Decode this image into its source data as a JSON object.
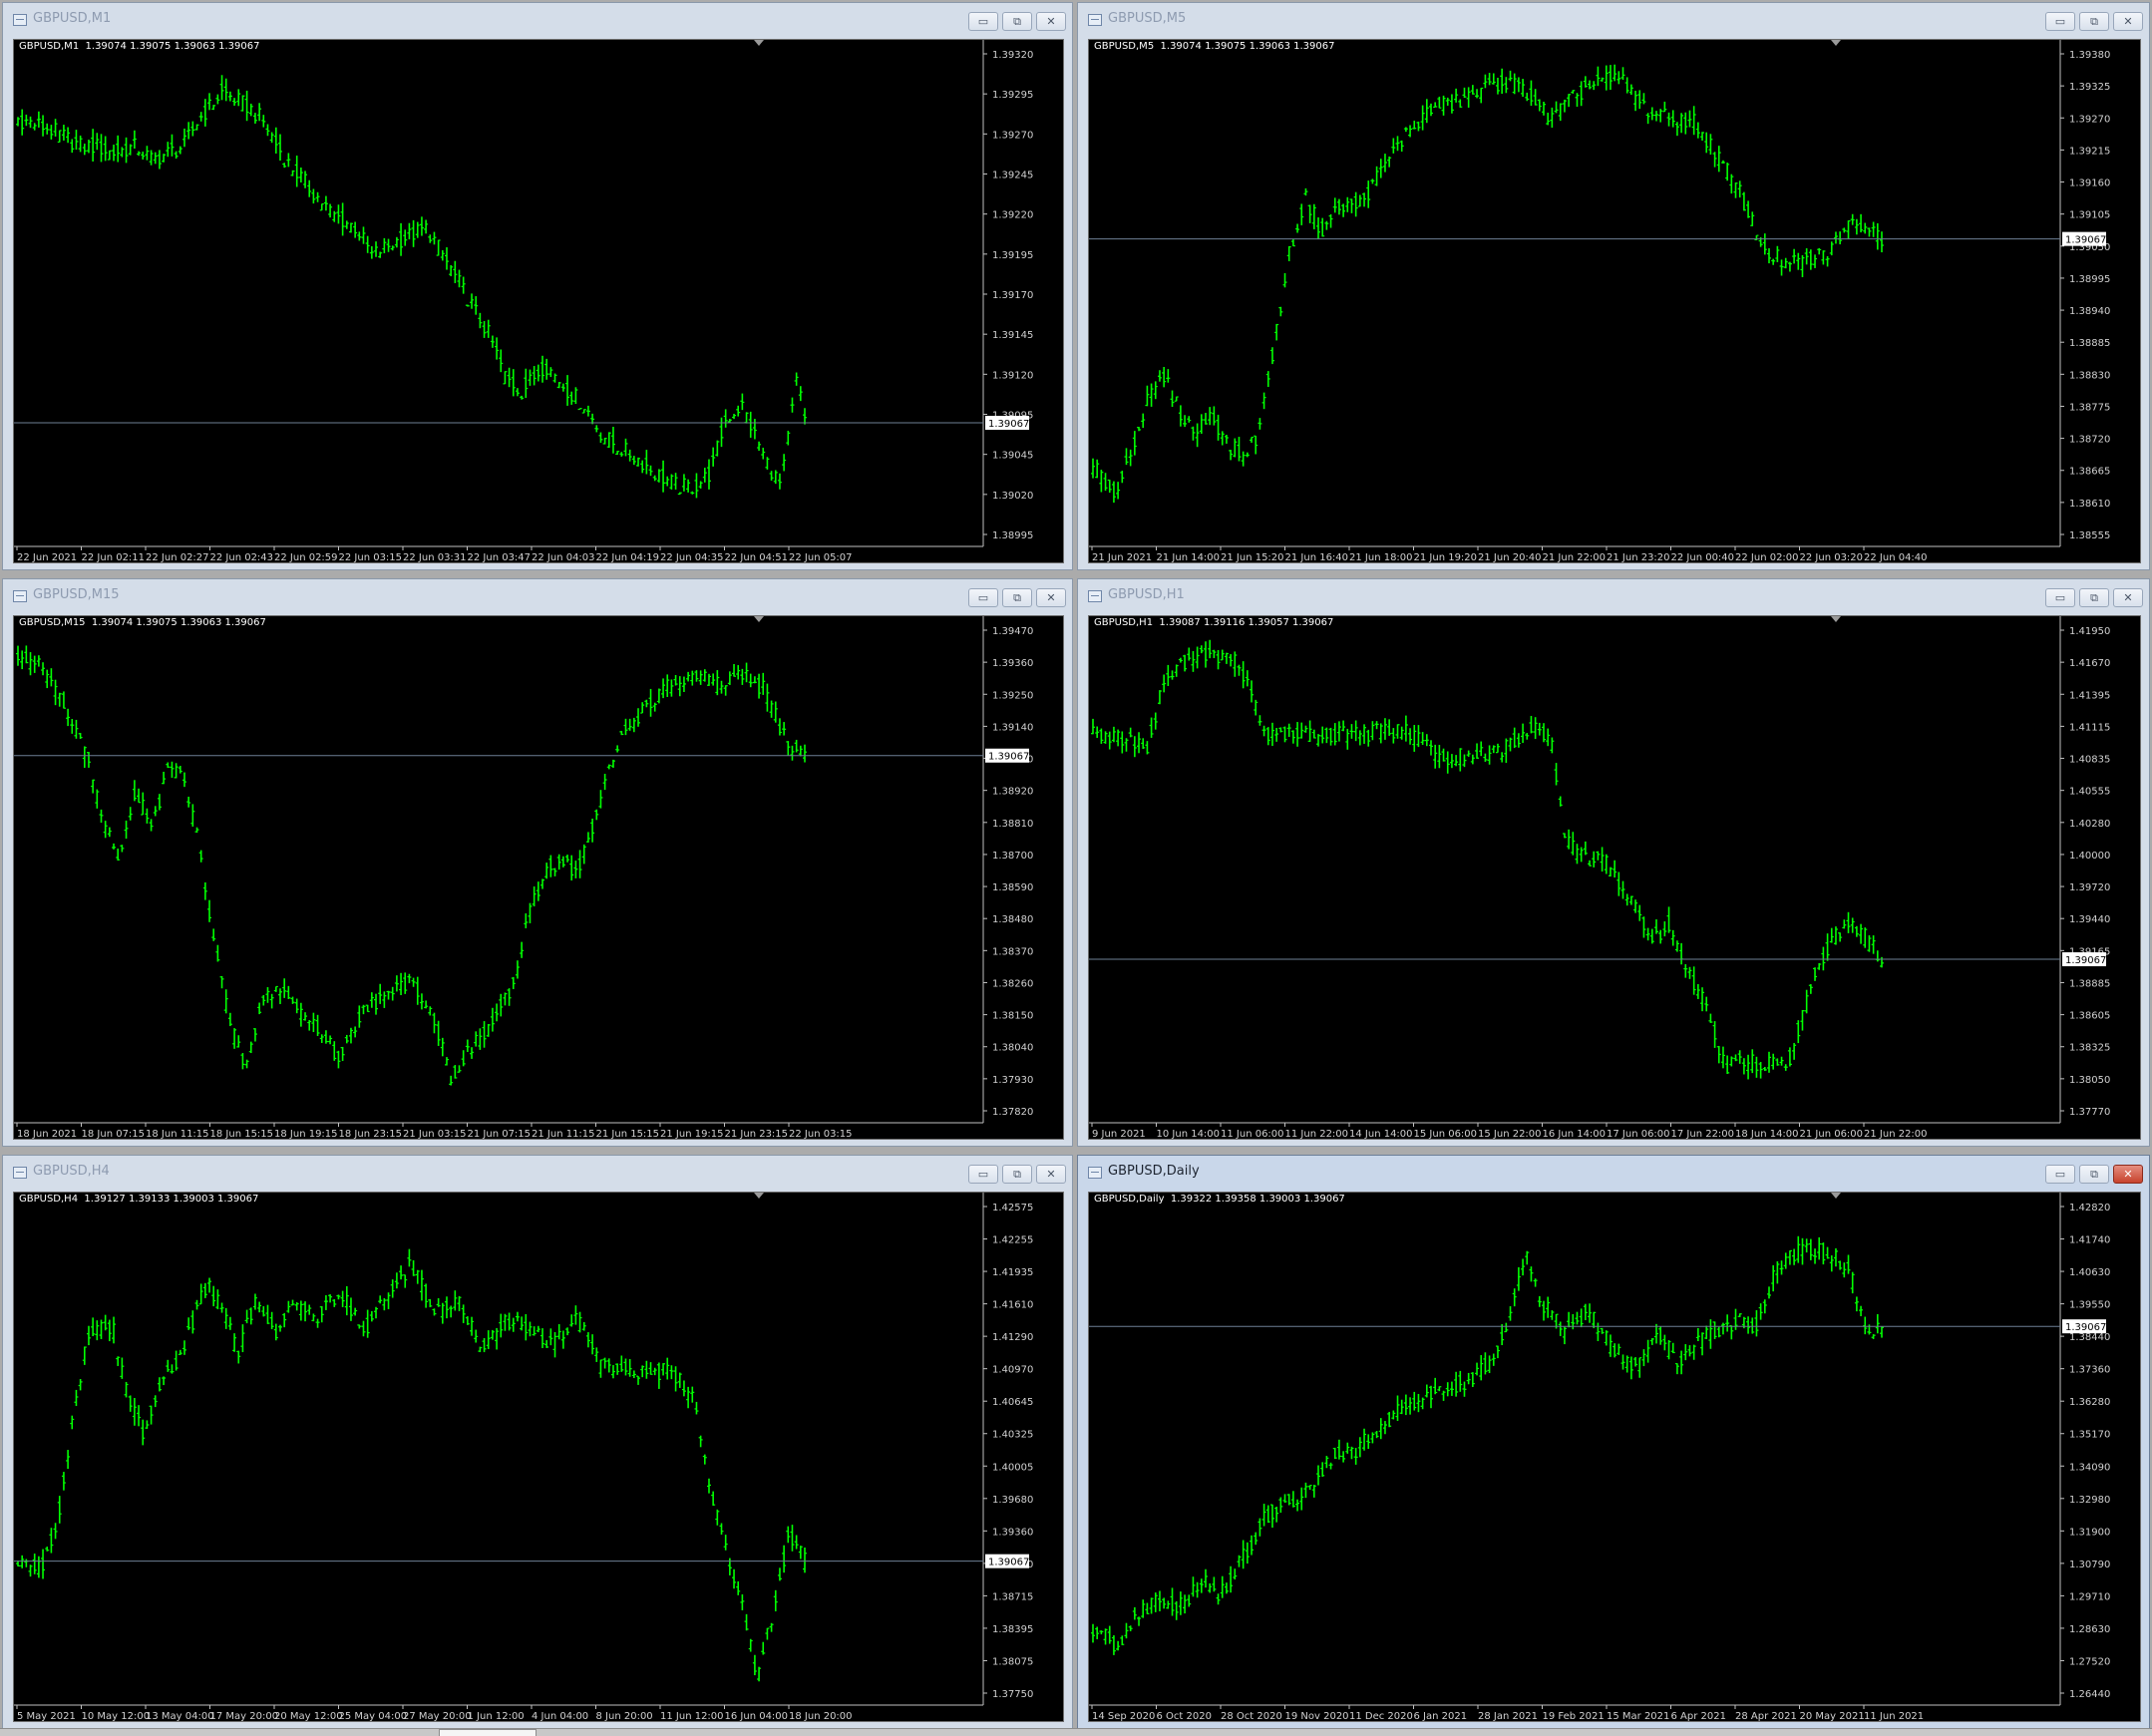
{
  "colors": {
    "candle": "#00ff00",
    "background": "#000000",
    "grid_axis": "#c0c0c0",
    "price_line": "#6e7f95",
    "price_label_bg": "#ffffff",
    "close_button": "#c7432d"
  },
  "icons": [
    "chart-window-icon",
    "minimize-icon",
    "restore-icon",
    "close-icon"
  ],
  "window_buttons": {
    "minimize": "▭",
    "restore": "⧉",
    "close": "✕"
  },
  "windows": [
    {
      "title": "GBPUSD,M1",
      "active": false,
      "info": "GBPUSD,M1  1.39074 1.39075 1.39063 1.39067",
      "y_ticks": [
        "1.39320",
        "1.39295",
        "1.39270",
        "1.39245",
        "1.39220",
        "1.39195",
        "1.39170",
        "1.39145",
        "1.39120",
        "1.39095",
        "1.39045",
        "1.39020",
        "1.38995"
      ],
      "x_labels": [
        "22 Jun 2021",
        "22 Jun 02:11",
        "22 Jun 02:27",
        "22 Jun 02:43",
        "22 Jun 02:59",
        "22 Jun 03:15",
        "22 Jun 03:31",
        "22 Jun 03:47",
        "22 Jun 04:03",
        "22 Jun 04:19",
        "22 Jun 04:35",
        "22 Jun 04:51",
        "22 Jun 05:07"
      ],
      "current_price": "1.39067",
      "chart_data": {
        "type": "line",
        "ylim": [
          1.38985,
          1.39335
        ],
        "x_frac": [
          0,
          0.03,
          0.05,
          0.08,
          0.1,
          0.12,
          0.15,
          0.17,
          0.21,
          0.23,
          0.26,
          0.29,
          0.31,
          0.34,
          0.37,
          0.4,
          0.43,
          0.45,
          0.48,
          0.52,
          0.55,
          0.57,
          0.6,
          0.62,
          0.64,
          0.67,
          0.7,
          0.72,
          0.74,
          0.76,
          0.79,
          0.81,
          0.84,
          0.86,
          0.88,
          0.9,
          0.92,
          0.95,
          0.97,
          0.99,
          1.0
        ],
        "values": [
          1.3929,
          1.39285,
          1.3928,
          1.3927,
          1.3927,
          1.39265,
          1.3927,
          1.3926,
          1.3927,
          1.3929,
          1.3931,
          1.393,
          1.3929,
          1.3926,
          1.3924,
          1.3922,
          1.3921,
          1.3919,
          1.392,
          1.3921,
          1.3918,
          1.3916,
          1.3913,
          1.391,
          1.3909,
          1.3911,
          1.3909,
          1.3908,
          1.3906,
          1.3905,
          1.3904,
          1.3903,
          1.3902,
          1.3902,
          1.3903,
          1.3907,
          1.3908,
          1.3904,
          1.3902,
          1.391,
          1.3907
        ]
      }
    },
    {
      "title": "GBPUSD,M5",
      "active": false,
      "info": "GBPUSD,M5  1.39074 1.39075 1.39063 1.39067",
      "y_ticks": [
        "1.39380",
        "1.39325",
        "1.39270",
        "1.39215",
        "1.39160",
        "1.39105",
        "1.39050",
        "1.38995",
        "1.38940",
        "1.38885",
        "1.38830",
        "1.38775",
        "1.38720",
        "1.38665",
        "1.38610",
        "1.38555"
      ],
      "x_labels": [
        "21 Jun 2021",
        "21 Jun 14:00",
        "21 Jun 15:20",
        "21 Jun 16:40",
        "21 Jun 18:00",
        "21 Jun 19:20",
        "21 Jun 20:40",
        "21 Jun 22:00",
        "21 Jun 23:20",
        "22 Jun 00:40",
        "22 Jun 02:00",
        "22 Jun 03:20",
        "22 Jun 04:40"
      ],
      "current_price": "1.39067",
      "chart_data": {
        "type": "line",
        "ylim": [
          1.3854,
          1.3939
        ],
        "x_frac": [
          0,
          0.03,
          0.05,
          0.07,
          0.09,
          0.11,
          0.13,
          0.15,
          0.17,
          0.19,
          0.21,
          0.23,
          0.25,
          0.27,
          0.29,
          0.31,
          0.34,
          0.37,
          0.4,
          0.43,
          0.46,
          0.49,
          0.52,
          0.55,
          0.58,
          0.61,
          0.64,
          0.67,
          0.7,
          0.73,
          0.76,
          0.79,
          0.82,
          0.85,
          0.88,
          0.91,
          0.93,
          0.95,
          0.97,
          0.99,
          1.0
        ],
        "values": [
          1.3866,
          1.3861,
          1.387,
          1.3878,
          1.3882,
          1.3876,
          1.3872,
          1.3876,
          1.387,
          1.3868,
          1.3872,
          1.3888,
          1.3905,
          1.3914,
          1.3908,
          1.3912,
          1.3913,
          1.392,
          1.3926,
          1.393,
          1.3931,
          1.3933,
          1.3935,
          1.3933,
          1.3928,
          1.3932,
          1.3935,
          1.3935,
          1.393,
          1.3928,
          1.3928,
          1.3922,
          1.3915,
          1.3905,
          1.3902,
          1.3903,
          1.3904,
          1.3908,
          1.391,
          1.3908,
          1.3907
        ]
      }
    },
    {
      "title": "GBPUSD,M15",
      "active": false,
      "info": "GBPUSD,M15  1.39074 1.39075 1.39063 1.39067",
      "y_ticks": [
        "1.39470",
        "1.39360",
        "1.39250",
        "1.39140",
        "1.39030",
        "1.38920",
        "1.38810",
        "1.38700",
        "1.38590",
        "1.38480",
        "1.38370",
        "1.38260",
        "1.38150",
        "1.38040",
        "1.37930",
        "1.37820"
      ],
      "x_labels": [
        "18 Jun 2021",
        "18 Jun 07:15",
        "18 Jun 11:15",
        "18 Jun 15:15",
        "18 Jun 19:15",
        "18 Jun 23:15",
        "21 Jun 03:15",
        "21 Jun 07:15",
        "21 Jun 11:15",
        "21 Jun 15:15",
        "21 Jun 19:15",
        "21 Jun 23:15",
        "22 Jun 03:15"
      ],
      "current_price": "1.39067",
      "chart_data": {
        "type": "line",
        "ylim": [
          1.378,
          1.395
        ],
        "x_frac": [
          0,
          0.03,
          0.06,
          0.09,
          0.11,
          0.13,
          0.15,
          0.17,
          0.19,
          0.21,
          0.23,
          0.25,
          0.27,
          0.29,
          0.31,
          0.33,
          0.35,
          0.38,
          0.41,
          0.44,
          0.47,
          0.5,
          0.53,
          0.55,
          0.57,
          0.6,
          0.63,
          0.65,
          0.67,
          0.69,
          0.71,
          0.73,
          0.75,
          0.77,
          0.8,
          0.83,
          0.86,
          0.89,
          0.92,
          0.95,
          0.98,
          1.0
        ],
        "values": [
          1.3943,
          1.3938,
          1.3925,
          1.3905,
          1.388,
          1.387,
          1.3895,
          1.388,
          1.3902,
          1.39,
          1.3875,
          1.384,
          1.381,
          1.3795,
          1.3818,
          1.3825,
          1.3818,
          1.381,
          1.3798,
          1.3818,
          1.382,
          1.3828,
          1.3812,
          1.3792,
          1.38,
          1.381,
          1.3825,
          1.385,
          1.3865,
          1.387,
          1.3865,
          1.388,
          1.39,
          1.3915,
          1.3925,
          1.3932,
          1.3935,
          1.3932,
          1.3935,
          1.393,
          1.391,
          1.3907
        ]
      }
    },
    {
      "title": "GBPUSD,H1",
      "active": false,
      "info": "GBPUSD,H1  1.39087 1.39116 1.39057 1.39067",
      "y_ticks": [
        "1.41950",
        "1.41670",
        "1.41395",
        "1.41115",
        "1.40835",
        "1.40555",
        "1.40280",
        "1.40000",
        "1.39720",
        "1.39440",
        "1.39165",
        "1.38885",
        "1.38605",
        "1.38325",
        "1.38050",
        "1.37770"
      ],
      "x_labels": [
        "9 Jun 2021",
        "10 Jun 14:00",
        "11 Jun 06:00",
        "11 Jun 22:00",
        "14 Jun 14:00",
        "15 Jun 06:00",
        "15 Jun 22:00",
        "16 Jun 14:00",
        "17 Jun 06:00",
        "17 Jun 22:00",
        "18 Jun 14:00",
        "21 Jun 06:00",
        "21 Jun 22:00"
      ],
      "current_price": "1.39067",
      "chart_data": {
        "type": "line",
        "ylim": [
          1.377,
          1.42
        ],
        "x_frac": [
          0,
          0.05,
          0.07,
          0.09,
          0.12,
          0.15,
          0.18,
          0.2,
          0.22,
          0.25,
          0.29,
          0.33,
          0.37,
          0.4,
          0.43,
          0.45,
          0.48,
          0.52,
          0.55,
          0.58,
          0.6,
          0.62,
          0.65,
          0.68,
          0.71,
          0.73,
          0.75,
          0.78,
          0.8,
          0.82,
          0.85,
          0.88,
          0.9,
          0.92,
          0.95,
          0.97,
          1.0
        ],
        "values": [
          1.4112,
          1.4105,
          1.4098,
          1.416,
          1.4178,
          1.4183,
          1.4175,
          1.415,
          1.4108,
          1.411,
          1.4108,
          1.411,
          1.4112,
          1.4112,
          1.4095,
          1.4088,
          1.409,
          1.4095,
          1.4115,
          1.4108,
          1.4012,
          1.4,
          1.3995,
          1.396,
          1.3925,
          1.394,
          1.39,
          1.3865,
          1.381,
          1.3815,
          1.3812,
          1.381,
          1.3855,
          1.3905,
          1.3935,
          1.3935,
          1.3907
        ]
      }
    },
    {
      "title": "GBPUSD,H4",
      "active": false,
      "info": "GBPUSD,H4  1.39127 1.39133 1.39003 1.39067",
      "y_ticks": [
        "1.42575",
        "1.42255",
        "1.41935",
        "1.41610",
        "1.41290",
        "1.40970",
        "1.40645",
        "1.40325",
        "1.40005",
        "1.39680",
        "1.39360",
        "1.39040",
        "1.38715",
        "1.38395",
        "1.38075",
        "1.37750"
      ],
      "x_labels": [
        "5 May 2021",
        "10 May 12:00",
        "13 May 04:00",
        "17 May 20:00",
        "20 May 12:00",
        "25 May 04:00",
        "27 May 20:00",
        "1 Jun 12:00",
        "4 Jun 04:00",
        "8 Jun 20:00",
        "11 Jun 12:00",
        "16 Jun 04:00",
        "18 Jun 20:00"
      ],
      "current_price": "1.39067",
      "chart_data": {
        "type": "line",
        "ylim": [
          1.377,
          1.427
        ],
        "x_frac": [
          0,
          0.03,
          0.05,
          0.07,
          0.09,
          0.12,
          0.14,
          0.16,
          0.18,
          0.21,
          0.24,
          0.26,
          0.28,
          0.3,
          0.33,
          0.35,
          0.38,
          0.41,
          0.44,
          0.47,
          0.5,
          0.53,
          0.56,
          0.59,
          0.62,
          0.65,
          0.68,
          0.71,
          0.74,
          0.77,
          0.8,
          0.83,
          0.86,
          0.88,
          0.9,
          0.92,
          0.94,
          0.96,
          0.98,
          1.0
        ],
        "values": [
          1.391,
          1.39,
          1.3945,
          1.4055,
          1.4145,
          1.415,
          1.4075,
          1.404,
          1.409,
          1.4125,
          1.4195,
          1.417,
          1.412,
          1.4175,
          1.4145,
          1.4175,
          1.416,
          1.4185,
          1.4145,
          1.418,
          1.4215,
          1.4165,
          1.4175,
          1.4125,
          1.4155,
          1.415,
          1.413,
          1.416,
          1.411,
          1.4105,
          1.41,
          1.4105,
          1.407,
          1.3985,
          1.392,
          1.3865,
          1.3785,
          1.3855,
          1.3935,
          1.3907
        ]
      }
    },
    {
      "title": "GBPUSD,Daily",
      "active": true,
      "info": "GBPUSD,Daily  1.39322 1.39358 1.39003 1.39067",
      "y_ticks": [
        "1.42820",
        "1.41740",
        "1.40630",
        "1.39550",
        "1.38440",
        "1.37360",
        "1.36280",
        "1.35170",
        "1.34090",
        "1.32980",
        "1.31900",
        "1.30790",
        "1.29710",
        "1.28630",
        "1.27520",
        "1.26440"
      ],
      "x_labels": [
        "14 Sep 2020",
        "6 Oct 2020",
        "28 Oct 2020",
        "19 Nov 2020",
        "11 Dec 2020",
        "6 Jan 2021",
        "28 Jan 2021",
        "19 Feb 2021",
        "15 Mar 2021",
        "6 Apr 2021",
        "28 Apr 2021",
        "20 May 2021",
        "11 Jun 2021"
      ],
      "current_price": "1.39067",
      "chart_data": {
        "type": "line",
        "ylim": [
          1.263,
          1.431
        ],
        "x_frac": [
          0,
          0.03,
          0.05,
          0.08,
          0.11,
          0.14,
          0.16,
          0.19,
          0.22,
          0.25,
          0.28,
          0.3,
          0.33,
          0.36,
          0.39,
          0.42,
          0.45,
          0.48,
          0.51,
          0.53,
          0.55,
          0.57,
          0.6,
          0.63,
          0.66,
          0.69,
          0.72,
          0.74,
          0.76,
          0.78,
          0.8,
          0.82,
          0.84,
          0.86,
          0.88,
          0.91,
          0.94,
          0.96,
          0.98,
          1.0
        ],
        "values": [
          1.285,
          1.28,
          1.288,
          1.295,
          1.293,
          1.302,
          1.296,
          1.31,
          1.325,
          1.33,
          1.333,
          1.345,
          1.347,
          1.355,
          1.362,
          1.366,
          1.369,
          1.372,
          1.38,
          1.396,
          1.415,
          1.398,
          1.389,
          1.396,
          1.382,
          1.377,
          1.388,
          1.378,
          1.383,
          1.388,
          1.391,
          1.393,
          1.39,
          1.406,
          1.415,
          1.418,
          1.415,
          1.41,
          1.388,
          1.3907
        ]
      }
    }
  ]
}
